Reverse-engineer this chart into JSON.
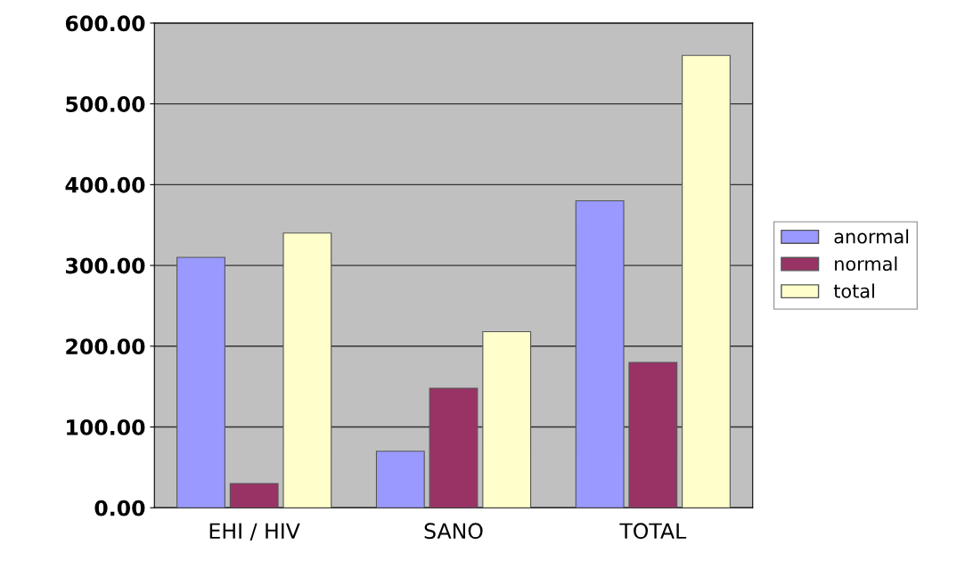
{
  "chart_data": {
    "type": "bar",
    "categories": [
      "EHI / HIV",
      "SANO",
      "TOTAL"
    ],
    "series": [
      {
        "name": "anormal",
        "color": "#9999ff",
        "values": [
          310,
          70,
          380
        ]
      },
      {
        "name": "normal",
        "color": "#993366",
        "values": [
          30,
          148,
          180
        ]
      },
      {
        "name": "total",
        "color": "#ffffcc",
        "values": [
          340,
          218,
          560
        ]
      }
    ],
    "ylim": [
      0,
      600
    ],
    "yticks": [
      {
        "value": 0,
        "label": "0.00"
      },
      {
        "value": 100,
        "label": "100.00"
      },
      {
        "value": 200,
        "label": "200.00"
      },
      {
        "value": 300,
        "label": "300.00"
      },
      {
        "value": 400,
        "label": "400.00"
      },
      {
        "value": 500,
        "label": "500.00"
      },
      {
        "value": 600,
        "label": "600.00"
      }
    ],
    "grid": "y",
    "legend": "right"
  }
}
